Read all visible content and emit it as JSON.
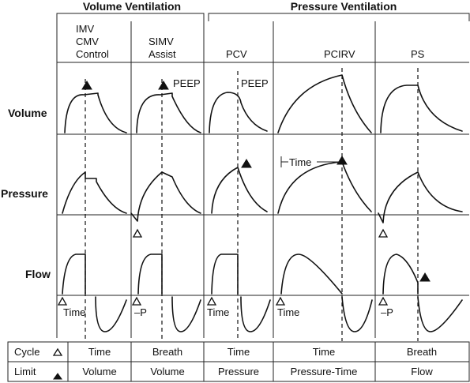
{
  "groups": {
    "volume": "Volume Ventilation",
    "pressure": "Pressure Ventilation"
  },
  "columns": {
    "c1": [
      "IMV",
      "CMV",
      "Control"
    ],
    "c2": [
      "SIMV",
      "Assist"
    ],
    "c3": "PCV",
    "c4": "PCIRV",
    "c5": "PS"
  },
  "rows": {
    "volume": "Volume",
    "pressure": "Pressure",
    "flow": "Flow"
  },
  "annotations": {
    "peep": "PEEP",
    "time": "Time",
    "neg_p": "–P"
  },
  "table": {
    "cycle_label": "Cycle",
    "limit_label": "Limit",
    "cycle": [
      "Time",
      "Breath",
      "Time",
      "Time",
      "Breath"
    ],
    "limit": [
      "Volume",
      "Volume",
      "Pressure",
      "Pressure-Time",
      "Flow"
    ]
  },
  "markers": {
    "open": "open-triangle-icon",
    "filled": "filled-triangle-icon"
  }
}
